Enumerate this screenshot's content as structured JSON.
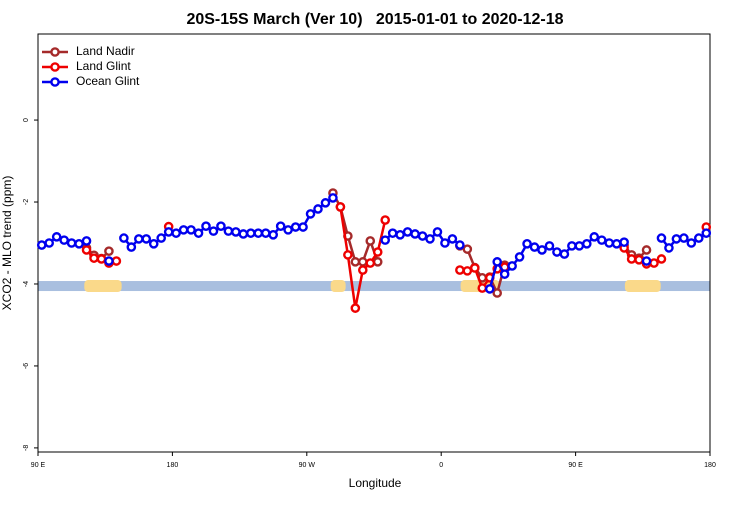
{
  "chart_data": {
    "type": "line",
    "title": "20S-15S March (Ver 10)   2015-01-01 to 2020-12-18",
    "x_label": "Longitude",
    "y_label": "XCO2 - MLO trend (ppm)",
    "xlim": [
      90,
      540
    ],
    "ylim": [
      -8.1,
      2.1
    ],
    "xticks": [
      {
        "value": 90,
        "label": "90 E"
      },
      180,
      {
        "value": 270,
        "label": "90 W"
      },
      {
        "value": 360,
        "label": "0"
      },
      {
        "value": 450,
        "label": "90 E"
      },
      {
        "value": 540,
        "label": "180"
      }
    ],
    "yticks": [
      0,
      -2,
      -4,
      -6,
      -8
    ],
    "legend": "top-left",
    "surface": {
      "y": -4.05,
      "ocean_color": "#a9bfdf",
      "land_color": "#fad98a",
      "land": [
        [
          121,
          146
        ],
        [
          286,
          296
        ],
        [
          373,
          399
        ],
        [
          483,
          507
        ]
      ]
    },
    "x": [
      92.5,
      97.5,
      102.5,
      107.5,
      112.5,
      117.5,
      122.5,
      127.5,
      132.5,
      137.5,
      142.5,
      147.5,
      152.5,
      157.5,
      162.5,
      167.5,
      172.5,
      177.5,
      182.5,
      187.5,
      192.5,
      197.5,
      202.5,
      207.5,
      212.5,
      217.5,
      222.5,
      227.5,
      232.5,
      237.5,
      242.5,
      247.5,
      252.5,
      257.5,
      262.5,
      267.5,
      272.5,
      277.5,
      282.5,
      287.5,
      292.5,
      297.5,
      302.5,
      307.5,
      312.5,
      317.5,
      322.5,
      327.5,
      332.5,
      337.5,
      342.5,
      347.5,
      352.5,
      357.5,
      362.5,
      367.5,
      372.5,
      377.5,
      382.5,
      387.5,
      392.5,
      397.5,
      402.5,
      407.5,
      412.5,
      417.5,
      422.5,
      427.5,
      432.5,
      437.5,
      442.5,
      447.5,
      452.5,
      457.5,
      462.5,
      467.5,
      472.5,
      477.5,
      482.5,
      487.5,
      492.5,
      497.5,
      502.5,
      507.5,
      512.5,
      517.5,
      522.5,
      527.5,
      532.5,
      537.5
    ],
    "series": [
      {
        "name": "Land Nadir",
        "color": "#a52a2a",
        "values": [
          null,
          null,
          null,
          null,
          null,
          null,
          -3.12,
          -3.3,
          -3.38,
          -3.2,
          null,
          null,
          null,
          null,
          null,
          null,
          null,
          null,
          null,
          null,
          null,
          null,
          null,
          null,
          null,
          null,
          null,
          null,
          null,
          null,
          null,
          null,
          null,
          null,
          null,
          null,
          null,
          null,
          null,
          -1.78,
          -2.12,
          -2.83,
          -3.46,
          -3.46,
          -2.95,
          -3.46,
          null,
          null,
          null,
          null,
          null,
          null,
          null,
          null,
          null,
          null,
          -3.07,
          -3.15,
          -3.6,
          -3.85,
          -3.83,
          -4.22,
          -3.54,
          null,
          null,
          null,
          null,
          null,
          null,
          null,
          null,
          null,
          null,
          null,
          null,
          null,
          null,
          null,
          -3.05,
          -3.29,
          -3.37,
          -3.17,
          null,
          null,
          null,
          null,
          null,
          null,
          null,
          null
        ]
      },
      {
        "name": "Land Glint",
        "color": "#ee0000",
        "values": [
          null,
          null,
          null,
          null,
          null,
          null,
          -3.17,
          -3.37,
          -3.39,
          -3.49,
          -3.44,
          null,
          null,
          null,
          null,
          null,
          null,
          -2.6,
          null,
          null,
          null,
          null,
          null,
          null,
          null,
          null,
          null,
          null,
          null,
          null,
          null,
          null,
          null,
          null,
          null,
          null,
          null,
          null,
          null,
          null,
          -2.12,
          -3.29,
          -4.59,
          -3.66,
          -3.49,
          -3.22,
          -2.44,
          null,
          null,
          null,
          null,
          null,
          null,
          null,
          null,
          null,
          -3.66,
          -3.68,
          -3.61,
          -4.1,
          -3.85,
          -3.63,
          -3.59,
          null,
          null,
          null,
          null,
          null,
          null,
          null,
          null,
          null,
          null,
          null,
          null,
          null,
          null,
          null,
          -3.12,
          -3.39,
          -3.41,
          -3.51,
          -3.49,
          -3.39,
          null,
          null,
          null,
          null,
          null,
          -2.61
        ]
      },
      {
        "name": "Ocean Glint",
        "color": "#0000ee",
        "values": [
          -3.05,
          -3.0,
          -2.85,
          -2.93,
          -3.0,
          -3.02,
          -2.95,
          null,
          null,
          -3.44,
          null,
          -2.88,
          -3.1,
          -2.9,
          -2.9,
          -3.02,
          -2.88,
          -2.73,
          -2.76,
          -2.68,
          -2.68,
          -2.76,
          -2.59,
          -2.71,
          -2.59,
          -2.71,
          -2.73,
          -2.78,
          -2.76,
          -2.76,
          -2.76,
          -2.8,
          -2.59,
          -2.68,
          -2.61,
          -2.61,
          -2.29,
          -2.17,
          -2.02,
          -1.9,
          null,
          null,
          null,
          null,
          null,
          null,
          -2.93,
          -2.76,
          -2.8,
          -2.73,
          -2.78,
          -2.83,
          -2.9,
          -2.73,
          -3.0,
          -2.9,
          -3.05,
          null,
          null,
          null,
          -4.12,
          -3.46,
          -3.76,
          -3.56,
          -3.34,
          -3.02,
          -3.1,
          -3.17,
          -3.07,
          -3.22,
          -3.27,
          -3.07,
          -3.07,
          -3.02,
          -2.85,
          -2.93,
          -3.0,
          -3.02,
          -2.98,
          null,
          null,
          -3.44,
          null,
          -2.88,
          -3.12,
          -2.9,
          -2.88,
          -3.0,
          -2.88,
          -2.76
        ]
      }
    ]
  }
}
